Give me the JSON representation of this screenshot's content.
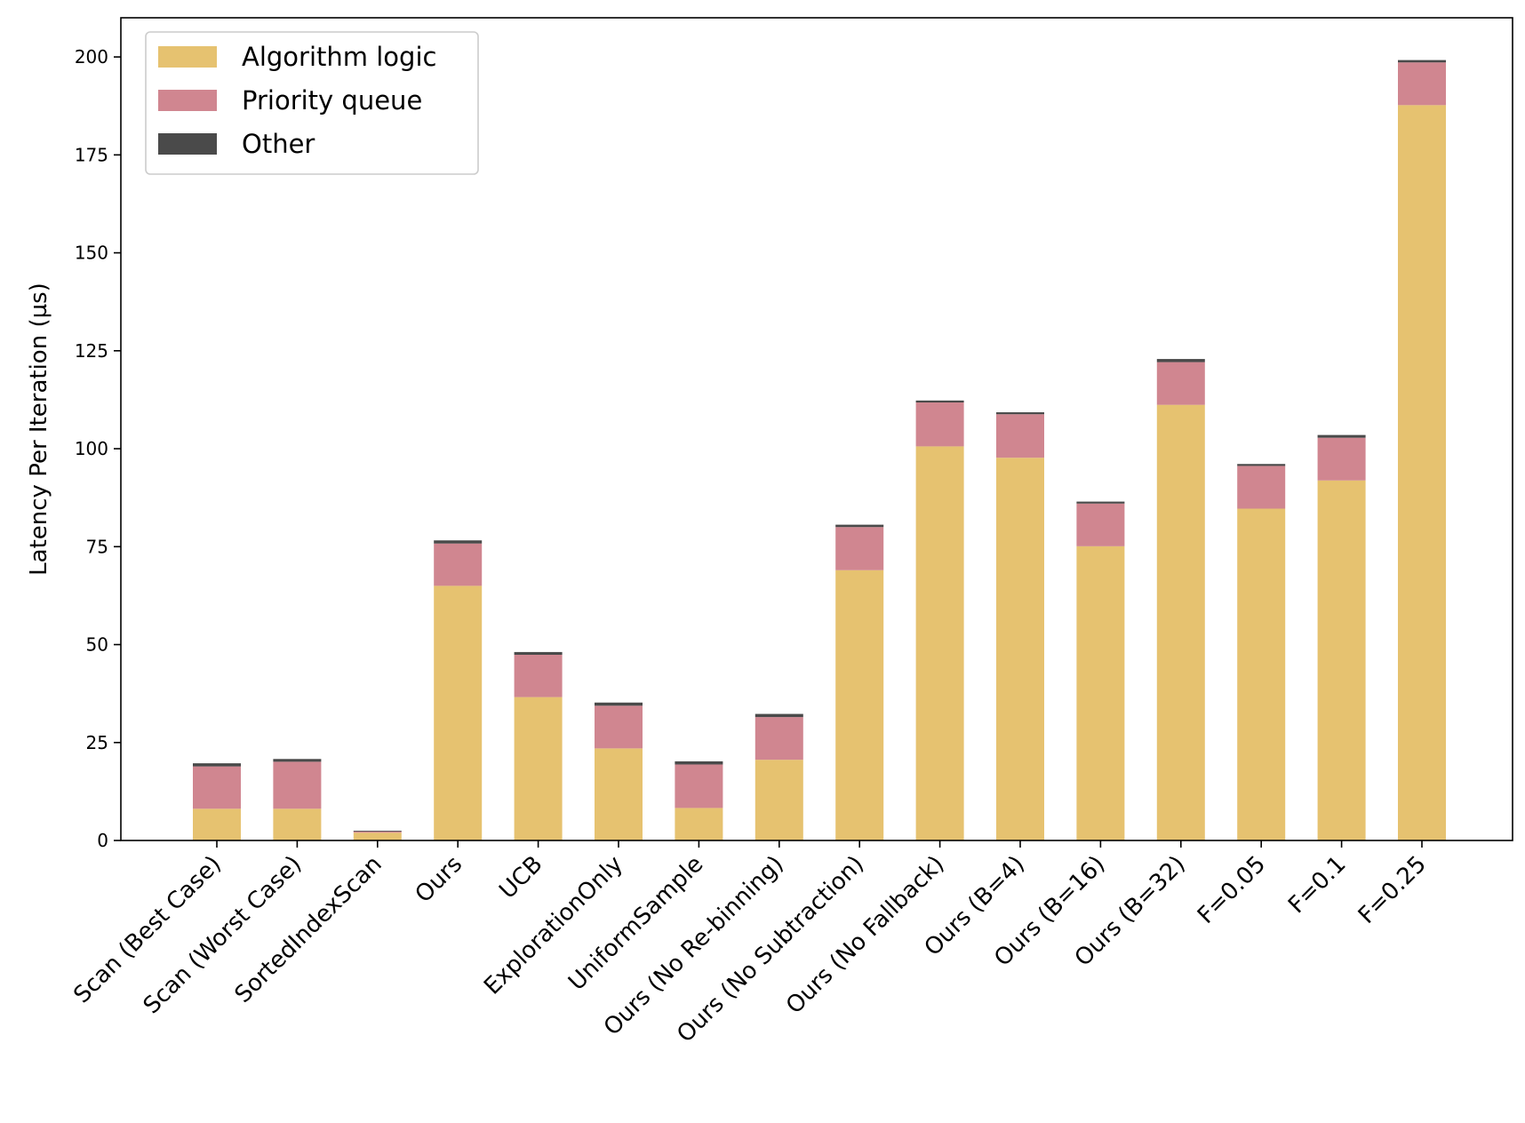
{
  "chart_data": {
    "type": "bar",
    "stacked": true,
    "title": "",
    "xlabel": "",
    "ylabel": "Latency Per Iteration (µs)",
    "ylim": [
      0,
      210
    ],
    "yticks": [
      0,
      25,
      50,
      75,
      100,
      125,
      150,
      175,
      200
    ],
    "grid": false,
    "legend_position": "top-left",
    "categories": [
      "Scan (Best Case)",
      "Scan (Worst Case)",
      "SortedIndexScan",
      "Ours",
      "UCB",
      "ExplorationOnly",
      "UniformSample",
      "Ours (No Re-binning)",
      "Ours (No Subtraction)",
      "Ours (No Fallback)",
      "Ours (B=4)",
      "Ours (B=16)",
      "Ours (B=32)",
      "F=0.05",
      "F=0.1",
      "F=0.25"
    ],
    "series": [
      {
        "name": "Algorithm logic",
        "color": "#e6c270",
        "values": [
          8.1,
          8.1,
          2.0,
          65.0,
          36.6,
          23.5,
          8.3,
          20.6,
          69.0,
          100.6,
          97.7,
          75.1,
          111.2,
          84.7,
          91.9,
          187.7
        ]
      },
      {
        "name": "Priority queue",
        "color": "#d08690",
        "values": [
          10.8,
          12.0,
          0.3,
          10.8,
          10.8,
          10.9,
          11.1,
          10.9,
          11.0,
          11.2,
          11.1,
          10.9,
          10.9,
          10.9,
          10.9,
          10.9
        ]
      },
      {
        "name": "Other",
        "color": "#4a4a4a",
        "values": [
          0.8,
          0.7,
          0.2,
          0.8,
          0.7,
          0.8,
          0.8,
          0.8,
          0.6,
          0.5,
          0.5,
          0.5,
          0.8,
          0.5,
          0.7,
          0.6
        ]
      }
    ]
  }
}
